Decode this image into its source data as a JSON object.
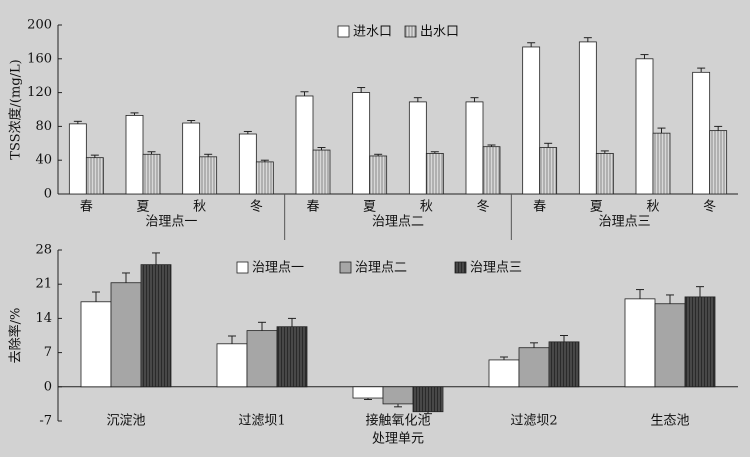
{
  "chart_data": [
    {
      "type": "bar",
      "ylabel": "TSS浓度/(mg/L)",
      "categories": [
        "春",
        "夏",
        "秋",
        "冬",
        "春",
        "夏",
        "秋",
        "冬",
        "春",
        "夏",
        "秋",
        "冬"
      ],
      "groups": [
        "治理点一",
        "治理点二",
        "治理点三"
      ],
      "series": [
        {
          "name": "进水口",
          "color": "#ffffff",
          "hatch": false,
          "values": [
            83,
            93,
            84,
            71,
            116,
            120,
            109,
            109,
            174,
            180,
            160,
            144
          ],
          "errors": [
            3,
            3,
            3,
            3,
            5,
            6,
            5,
            5,
            5,
            5,
            5,
            5
          ]
        },
        {
          "name": "出水口",
          "color": "#c4c4c4",
          "hatch": true,
          "values": [
            43,
            47,
            44,
            38,
            52,
            45,
            48,
            56,
            55,
            48,
            72,
            75
          ],
          "errors": [
            3,
            3,
            3,
            2,
            3,
            2,
            2,
            2,
            5,
            3,
            6,
            5
          ]
        }
      ],
      "ylim": [
        0,
        200
      ],
      "yticks": [
        0,
        40,
        80,
        120,
        160,
        200
      ],
      "grid": false
    },
    {
      "type": "bar",
      "ylabel": "去除率/%",
      "xlabel": "处理单元",
      "categories": [
        "沉淀池",
        "过滤坝1",
        "接触氧化池",
        "过滤坝2",
        "生态池"
      ],
      "series": [
        {
          "name": "治理点一",
          "color": "#ffffff",
          "hatch": false,
          "values": [
            17.4,
            8.8,
            -2.3,
            5.5,
            18.0
          ],
          "errors": [
            2.0,
            1.6,
            0.3,
            0.6,
            1.9
          ]
        },
        {
          "name": "治理点二",
          "color": "#a6a6a6",
          "hatch": false,
          "values": [
            21.3,
            11.5,
            -3.5,
            8.0,
            17.0
          ],
          "errors": [
            2.0,
            1.7,
            0.6,
            1.0,
            1.8
          ]
        },
        {
          "name": "治理点三",
          "color": "#3a3a3a",
          "hatch": true,
          "values": [
            25.0,
            12.3,
            -5.1,
            9.2,
            18.4
          ],
          "errors": [
            2.4,
            1.7,
            0.4,
            1.3,
            2.1
          ]
        }
      ],
      "ylim": [
        -7,
        28
      ],
      "yticks": [
        -7,
        0,
        7,
        14,
        21,
        28
      ],
      "grid": false
    }
  ]
}
